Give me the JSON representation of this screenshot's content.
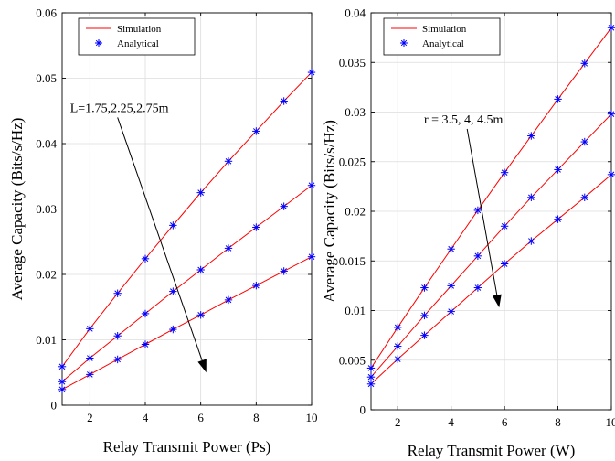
{
  "chart_data": [
    {
      "type": "line",
      "title": "",
      "xlabel": "Relay Transmit Power  (Ps)",
      "ylabel": "Average Capacity (Bits/s/Hz)",
      "xlim": [
        1,
        10
      ],
      "ylim": [
        0,
        0.06
      ],
      "xticks": [
        2,
        4,
        6,
        8,
        10
      ],
      "yticks": [
        0,
        0.01,
        0.02,
        0.03,
        0.04,
        0.05,
        0.06
      ],
      "xtick_labels": [
        "2",
        "4",
        "6",
        "8",
        "10"
      ],
      "ytick_labels": [
        "0",
        "0.01",
        "0.02",
        "0.03",
        "0.04",
        "0.05",
        "0.06"
      ],
      "grid": true,
      "legend_position": "top-left",
      "legend": [
        {
          "label": "Simulation",
          "style": "red-line"
        },
        {
          "label": "Analytical",
          "style": "blue-asterisk"
        }
      ],
      "annotation": {
        "text": "L=1.75,2.25,2.75m",
        "arrow_from": [
          3.0,
          0.044
        ],
        "arrow_to": [
          6.2,
          0.005
        ]
      },
      "x": [
        1,
        2,
        3,
        4,
        5,
        6,
        7,
        8,
        9,
        10
      ],
      "series": [
        {
          "values": [
            0.0059,
            0.0117,
            0.0171,
            0.0224,
            0.0275,
            0.0325,
            0.0373,
            0.0419,
            0.0465,
            0.0509
          ]
        },
        {
          "values": [
            0.0036,
            0.0072,
            0.0106,
            0.014,
            0.0174,
            0.0207,
            0.024,
            0.0272,
            0.0304,
            0.0336
          ]
        },
        {
          "values": [
            0.0024,
            0.0047,
            0.007,
            0.0093,
            0.0116,
            0.0138,
            0.0161,
            0.0183,
            0.0205,
            0.0227
          ]
        }
      ]
    },
    {
      "type": "line",
      "title": "",
      "xlabel": "Relay Transmit Power (W)",
      "ylabel": "Average Capacity (Bits/s/Hz)",
      "xlim": [
        1,
        10
      ],
      "ylim": [
        0,
        0.04
      ],
      "xticks": [
        2,
        4,
        6,
        8,
        10
      ],
      "yticks": [
        0,
        0.005,
        0.01,
        0.015,
        0.02,
        0.025,
        0.03,
        0.035,
        0.04
      ],
      "xtick_labels": [
        "2",
        "4",
        "6",
        "8",
        "10"
      ],
      "ytick_labels": [
        "0",
        "0.005",
        "0.01",
        "0.015",
        "0.02",
        "0.025",
        "0.03",
        "0.035",
        "0.04"
      ],
      "grid": true,
      "legend_position": "top-left",
      "legend": [
        {
          "label": "Simulation",
          "style": "red-line"
        },
        {
          "label": "Analytical",
          "style": "blue-asterisk"
        }
      ],
      "annotation": {
        "text": "r = 3.5, 4, 4.5m",
        "arrow_from": [
          4.6,
          0.0283
        ],
        "arrow_to": [
          5.8,
          0.0103
        ]
      },
      "x": [
        1,
        2,
        3,
        4,
        5,
        6,
        7,
        8,
        9,
        10
      ],
      "series": [
        {
          "values": [
            0.0042,
            0.0083,
            0.0123,
            0.0162,
            0.0201,
            0.0239,
            0.0276,
            0.0313,
            0.0349,
            0.0385
          ]
        },
        {
          "values": [
            0.0033,
            0.0064,
            0.0095,
            0.0125,
            0.0155,
            0.0185,
            0.0214,
            0.0242,
            0.027,
            0.0298
          ]
        },
        {
          "values": [
            0.0026,
            0.0051,
            0.0075,
            0.0099,
            0.0123,
            0.0147,
            0.017,
            0.0192,
            0.0214,
            0.0237
          ]
        }
      ]
    }
  ]
}
